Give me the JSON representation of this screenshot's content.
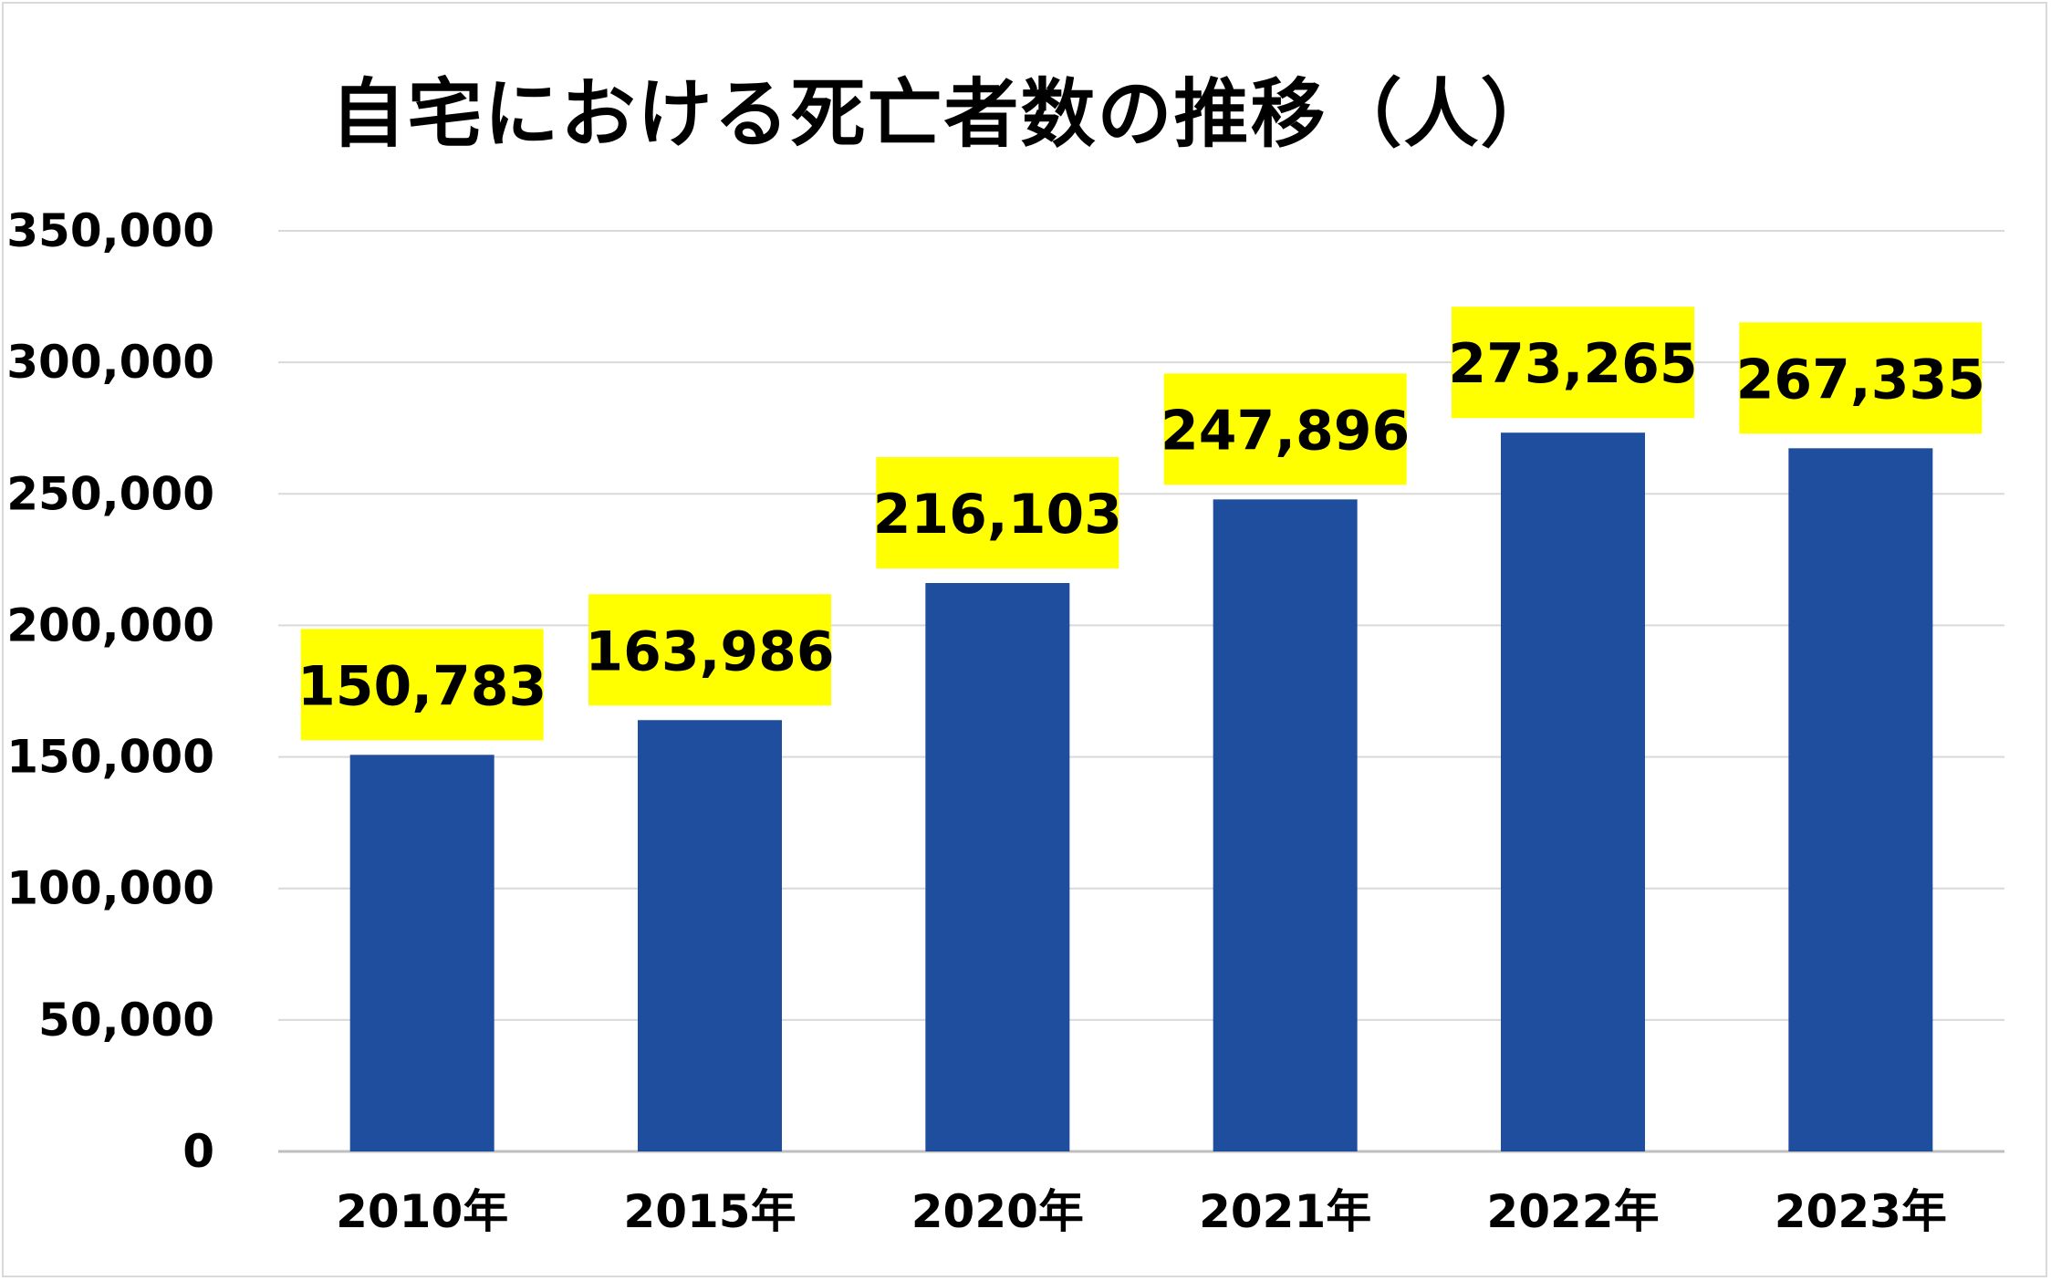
{
  "chart_data": {
    "type": "bar",
    "title": "自宅における死亡者数の推移（人）",
    "categories": [
      "2010年",
      "2015年",
      "2020年",
      "2021年",
      "2022年",
      "2023年"
    ],
    "values": [
      150783,
      163986,
      216103,
      247896,
      273265,
      267335
    ],
    "data_labels": [
      "150,783",
      "163,986",
      "216,103",
      "247,896",
      "273,265",
      "267,335"
    ],
    "y_ticks": [
      "0",
      "50,000",
      "100,000",
      "150,000",
      "200,000",
      "250,000",
      "300,000",
      "350,000"
    ],
    "ylim": [
      0,
      350000
    ],
    "xlabel": "",
    "ylabel": "",
    "grid": true,
    "legend": "none",
    "colors": {
      "bar": "#1f4e9f",
      "label_background": "#ffff00",
      "gridline": "#d9d9d9",
      "axis_line": "#bfbfbf"
    }
  }
}
